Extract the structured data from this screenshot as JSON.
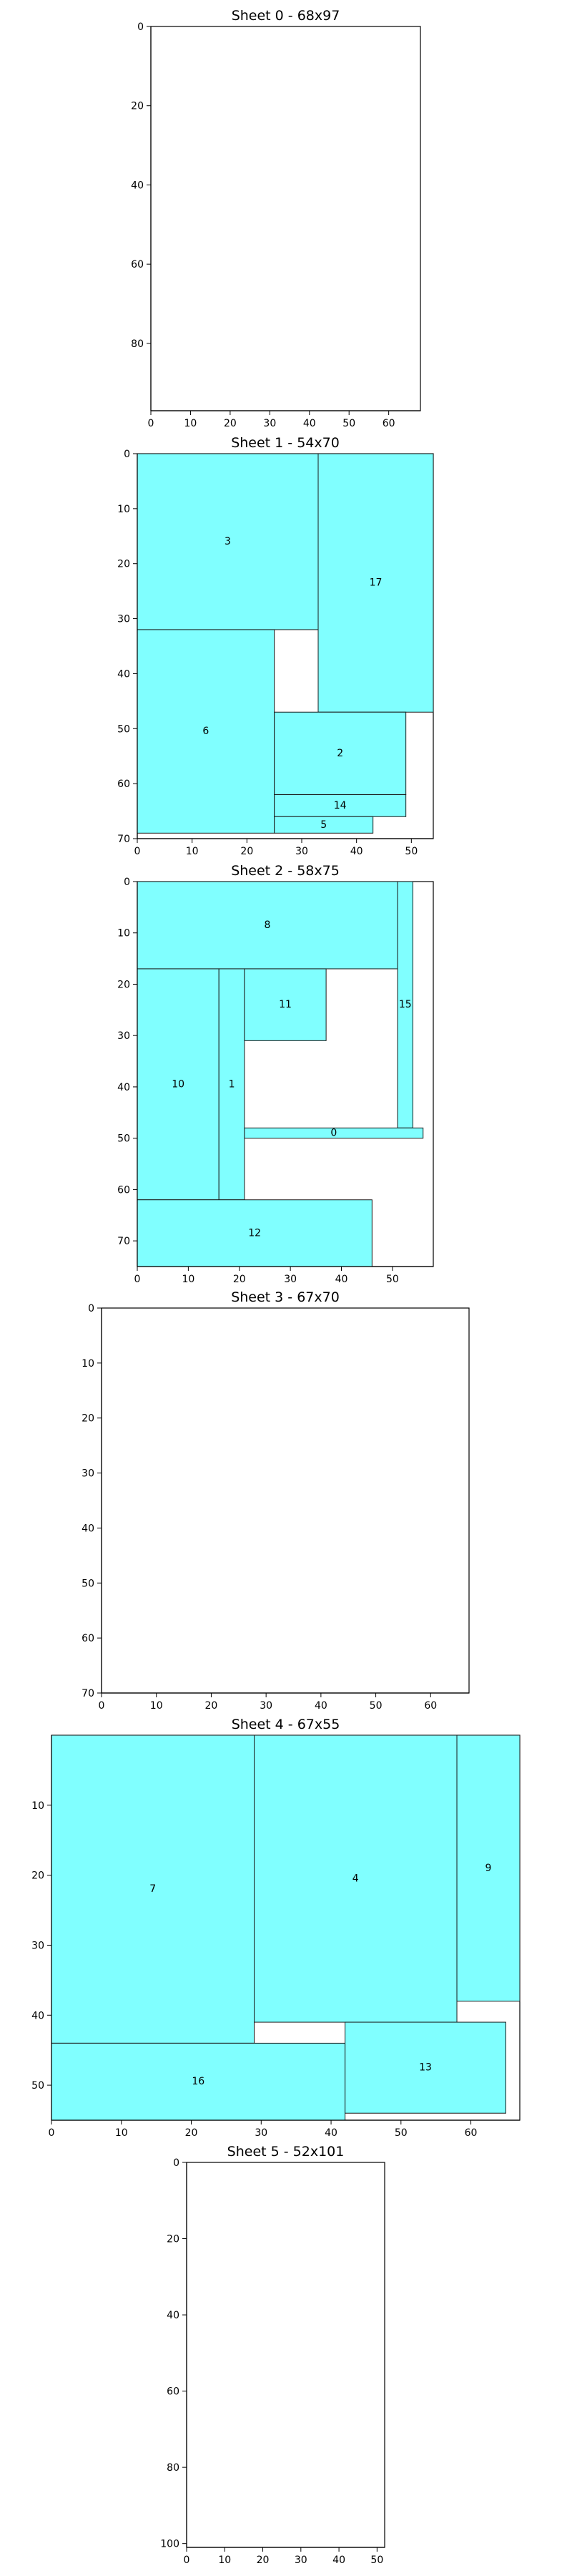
{
  "chart_data": [
    {
      "type": "rectangles",
      "title": "Sheet 0 - 68x97",
      "sheet": {
        "width": 68,
        "height": 97
      },
      "xlim": [
        0,
        68
      ],
      "ylim": [
        97,
        0
      ],
      "xticks": [
        0,
        10,
        20,
        30,
        40,
        50,
        60
      ],
      "yticks": [
        0,
        20,
        40,
        60,
        80
      ],
      "fill_color": "#80ffff",
      "rects": []
    },
    {
      "type": "rectangles",
      "title": "Sheet 1 - 54x70",
      "sheet": {
        "width": 54,
        "height": 70
      },
      "xlim": [
        0,
        54
      ],
      "ylim": [
        70,
        0
      ],
      "xticks": [
        0,
        10,
        20,
        30,
        40,
        50
      ],
      "yticks": [
        0,
        10,
        20,
        30,
        40,
        50,
        60,
        70
      ],
      "fill_color": "#80ffff",
      "rects": [
        {
          "id": "3",
          "x": 0,
          "y": 0,
          "w": 33,
          "h": 32
        },
        {
          "id": "17",
          "x": 33,
          "y": 0,
          "w": 21,
          "h": 47
        },
        {
          "id": "6",
          "x": 0,
          "y": 32,
          "w": 25,
          "h": 37
        },
        {
          "id": "2",
          "x": 25,
          "y": 47,
          "w": 24,
          "h": 15
        },
        {
          "id": "14",
          "x": 25,
          "y": 62,
          "w": 24,
          "h": 4
        },
        {
          "id": "5",
          "x": 25,
          "y": 66,
          "w": 18,
          "h": 3
        }
      ]
    },
    {
      "type": "rectangles",
      "title": "Sheet 2 - 58x75",
      "sheet": {
        "width": 58,
        "height": 75
      },
      "xlim": [
        0,
        58
      ],
      "ylim": [
        75,
        0
      ],
      "xticks": [
        0,
        10,
        20,
        30,
        40,
        50
      ],
      "yticks": [
        0,
        10,
        20,
        30,
        40,
        50,
        60,
        70
      ],
      "fill_color": "#80ffff",
      "rects": [
        {
          "id": "8",
          "x": 0,
          "y": 0,
          "w": 51,
          "h": 17
        },
        {
          "id": "15",
          "x": 51,
          "y": 0,
          "w": 3,
          "h": 48
        },
        {
          "id": "10",
          "x": 0,
          "y": 17,
          "w": 16,
          "h": 45
        },
        {
          "id": "1",
          "x": 16,
          "y": 17,
          "w": 5,
          "h": 45
        },
        {
          "id": "11",
          "x": 21,
          "y": 17,
          "w": 16,
          "h": 14
        },
        {
          "id": "0",
          "x": 21,
          "y": 48,
          "w": 35,
          "h": 2
        },
        {
          "id": "12",
          "x": 0,
          "y": 62,
          "w": 46,
          "h": 13
        }
      ]
    },
    {
      "type": "rectangles",
      "title": "Sheet 3 - 67x70",
      "sheet": {
        "width": 67,
        "height": 70
      },
      "xlim": [
        0,
        67
      ],
      "ylim": [
        70,
        0
      ],
      "xticks": [
        0,
        10,
        20,
        30,
        40,
        50,
        60
      ],
      "yticks": [
        0,
        10,
        20,
        30,
        40,
        50,
        60,
        70
      ],
      "fill_color": "#80ffff",
      "rects": []
    },
    {
      "type": "rectangles",
      "title": "Sheet 4 - 67x55",
      "sheet": {
        "width": 67,
        "height": 55
      },
      "xlim": [
        0,
        67
      ],
      "ylim": [
        55,
        0
      ],
      "xticks": [
        0,
        10,
        20,
        30,
        40,
        50,
        60
      ],
      "yticks": [
        10,
        20,
        30,
        40,
        50
      ],
      "fill_color": "#80ffff",
      "rects": [
        {
          "id": "7",
          "x": 0,
          "y": 0,
          "w": 29,
          "h": 44
        },
        {
          "id": "4",
          "x": 29,
          "y": 0,
          "w": 29,
          "h": 41
        },
        {
          "id": "9",
          "x": 58,
          "y": 0,
          "w": 9,
          "h": 38
        },
        {
          "id": "16",
          "x": 0,
          "y": 44,
          "w": 42,
          "h": 11
        },
        {
          "id": "13",
          "x": 42,
          "y": 41,
          "w": 23,
          "h": 13
        }
      ]
    },
    {
      "type": "rectangles",
      "title": "Sheet 5 - 52x101",
      "sheet": {
        "width": 52,
        "height": 101
      },
      "xlim": [
        0,
        52
      ],
      "ylim": [
        101,
        0
      ],
      "xticks": [
        0,
        10,
        20,
        30,
        40,
        50
      ],
      "yticks": [
        0,
        20,
        40,
        60,
        80,
        100
      ],
      "fill_color": "#80ffff",
      "rects": []
    }
  ]
}
